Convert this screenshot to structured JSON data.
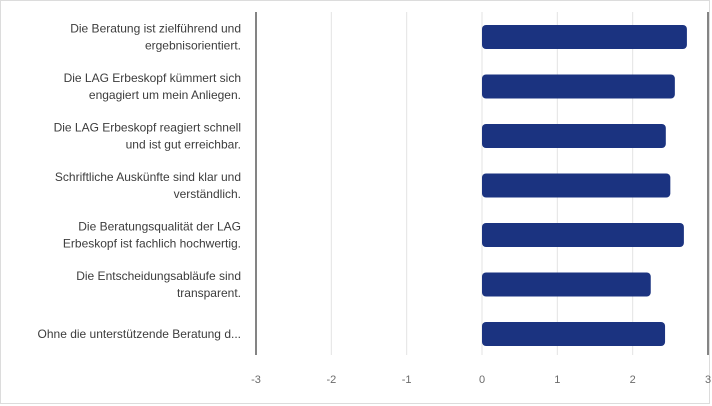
{
  "chart_data": {
    "type": "bar",
    "orientation": "horizontal",
    "categories": [
      [
        "Die Beratung ist zielführend und",
        "ergebnisorientiert."
      ],
      [
        "Die LAG Erbeskopf kümmert sich",
        "engagiert um mein Anliegen."
      ],
      [
        "Die LAG Erbeskopf reagiert schnell",
        "und ist gut erreichbar."
      ],
      [
        "Schriftliche Auskünfte sind klar und",
        "verständlich."
      ],
      [
        "Die Beratungsqualität der LAG",
        "Erbeskopf ist fachlich hochwertig."
      ],
      [
        "Die Entscheidungsabläufe sind",
        "transparent."
      ],
      [
        "Ohne die unterstützende Beratung d..."
      ]
    ],
    "values": [
      2.72,
      2.56,
      2.44,
      2.5,
      2.68,
      2.24,
      2.43
    ],
    "xlim": [
      -3,
      3
    ],
    "ticks": [
      "-3",
      "-2",
      "-1",
      "0",
      "1",
      "2",
      "3"
    ],
    "bar_color": "#1b3380",
    "grid": true,
    "title": "",
    "xlabel": "",
    "ylabel": ""
  }
}
